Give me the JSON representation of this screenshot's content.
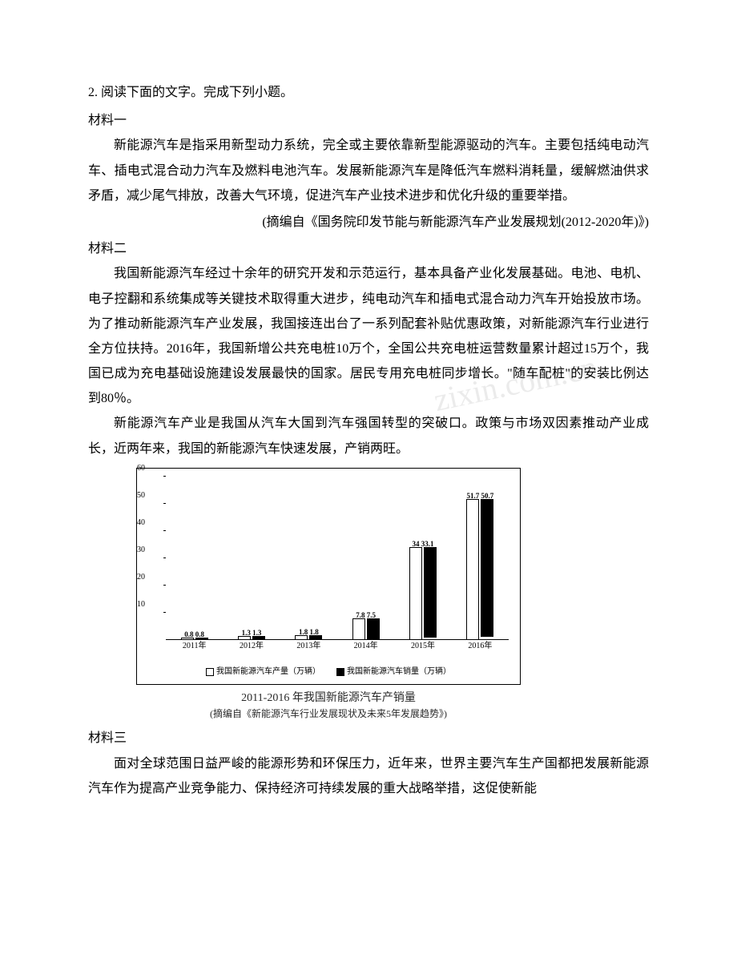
{
  "question": {
    "number": "2.",
    "prompt": "阅读下面的文字。完成下列小题。"
  },
  "material1": {
    "label": "材料一",
    "p1": "新能源汽车是指采用新型动力系统，完全或主要依靠新型能源驱动的汽车。主要包括纯电动汽车、插电式混合动力汽车及燃料电池汽车。发展新能源汽车是降低汽车燃料消耗量，缓解燃油供求矛盾，减少尾气排放，改善大气环境，促进汽车产业技术进步和优化升级的重要举措。",
    "source": "(摘编自《国务院印发节能与新能源汽车产业发展规划(2012-2020年)》)"
  },
  "material2": {
    "label": "材料二",
    "p1": "我国新能源汽车经过十余年的研究开发和示范运行，基本具备产业化发展基础。电池、电机、电子控翻和系统集成等关键技术取得重大进步，纯电动汽车和插电式混合动力汽车开始投放市场。为了推动新能源汽车产业发展，我国接连出台了一系列配套补贴优惠政策，对新能源汽车行业进行全方位扶持。2016年，我国新增公共充电桩10万个，全国公共充电桩运营数量累计超过15万个，我国已成为充电基础设施建设发展最快的国家。居民专用充电桩同步增长。\"随车配桩\"的安装比例达到80％。",
    "p2": "新能源汽车产业是我国从汽车大国到汽车强国转型的突破口。政策与市场双因素推动产业成长，近两年来，我国的新能源汽车快速发展，产销两旺。"
  },
  "chart": {
    "type": "bar",
    "title_line1": "2011-2016 年我国新能源汽车产销量",
    "title_line2": "(摘编自《新能源汽车行业发展现状及未来5年发展趋势》)",
    "categories": [
      "2011年",
      "2012年",
      "2013年",
      "2014年",
      "2015年",
      "2016年"
    ],
    "series": [
      {
        "name": "我国新能源汽车产量（万辆）",
        "fill": "open",
        "values": [
          0.8,
          1.3,
          1.8,
          7.8,
          34,
          51.7
        ]
      },
      {
        "name": "我国新能源汽车销量（万辆）",
        "fill": "solid",
        "values": [
          0.8,
          1.3,
          1.8,
          7.5,
          33.1,
          50.7
        ]
      }
    ],
    "bar_pair_labels": [
      "0.8 0.8",
      "1.3 1.3",
      "1.8 1.8",
      "7.8 7.5",
      "34  33.1",
      "51.7 50.7"
    ],
    "y_axis": {
      "min": 0,
      "max": 60,
      "ticks": [
        10,
        20,
        30,
        40,
        50,
        60
      ]
    },
    "legend": {
      "left": "我国新能源汽车产量（万辆）",
      "right": "我国新能源汽车销量（万辆）"
    },
    "colors": {
      "border": "#000000",
      "open_fill": "#ffffff",
      "solid_fill": "#000000",
      "background": "#ffffff"
    },
    "font_size": {
      "tick": 10,
      "label": 10,
      "bar_label": 9,
      "title": 14,
      "subtitle": 12
    }
  },
  "material3": {
    "label": "材料三",
    "p1": "面对全球范围日益严峻的能源形势和环保压力，近年来，世界主要汽车生产国都把发展新能源汽车作为提高产业竞争能力、保持经济可持续发展的重大战略举措，这促使新能"
  }
}
